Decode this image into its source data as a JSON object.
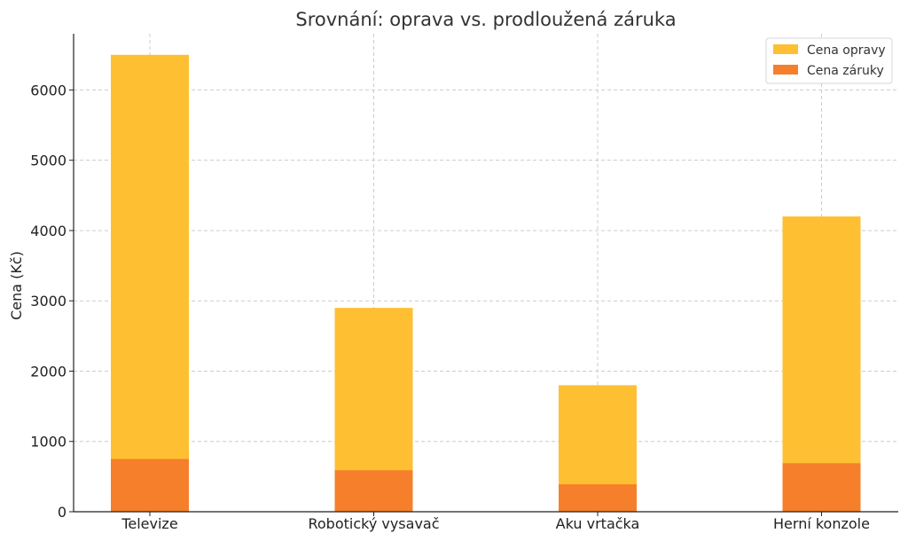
{
  "chart_data": {
    "type": "bar",
    "title": "Srovnání: oprava vs. prodloužená záruka",
    "ylabel": "Cena (Kč)",
    "xlabel": "",
    "categories": [
      "Televize",
      "Robotický vysavač",
      "Aku vrtačka",
      "Herní konzole"
    ],
    "series": [
      {
        "name": "Cena opravy",
        "values": [
          6500,
          2900,
          1800,
          4200
        ],
        "color": "#FFBF33"
      },
      {
        "name": "Cena záruky",
        "values": [
          750,
          590,
          390,
          690
        ],
        "color": "#F57F2A"
      }
    ],
    "ylim": [
      0,
      6800
    ],
    "yticks": [
      0,
      1000,
      2000,
      3000,
      4000,
      5000,
      6000
    ],
    "yticks_labels": [
      "0",
      "1000",
      "2000",
      "3000",
      "4000",
      "5000",
      "6000"
    ],
    "grid": true,
    "legend": "top-right",
    "bar_mode": "overlay"
  }
}
